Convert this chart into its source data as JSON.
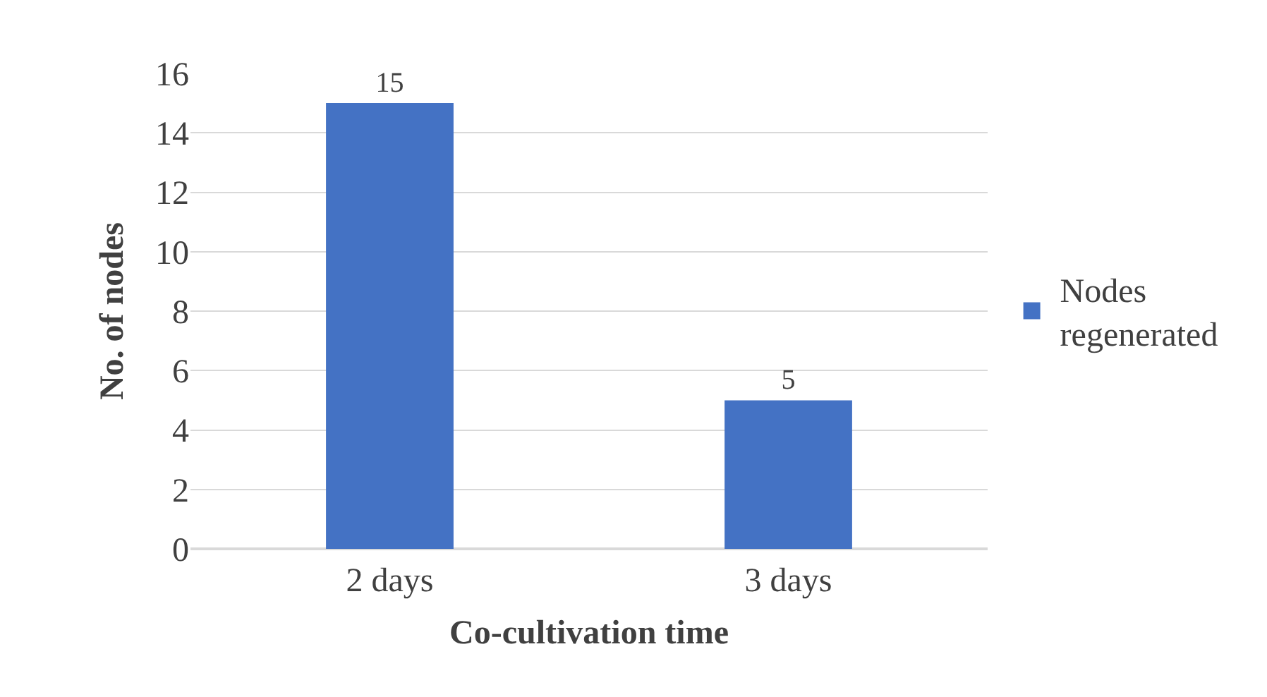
{
  "chart_data": {
    "type": "bar",
    "xlabel": "Co-cultivation time",
    "ylabel": "No. of nodes",
    "categories": [
      "2 days",
      "3 days"
    ],
    "series": [
      {
        "name": "Nodes regenerated",
        "color": "#4472c4",
        "values": [
          15,
          5
        ]
      }
    ],
    "ylim": [
      0,
      16
    ],
    "yticks": [
      0,
      2,
      4,
      6,
      8,
      10,
      12,
      14,
      16
    ],
    "grid": "y",
    "legend": "right",
    "data_labels": true
  }
}
